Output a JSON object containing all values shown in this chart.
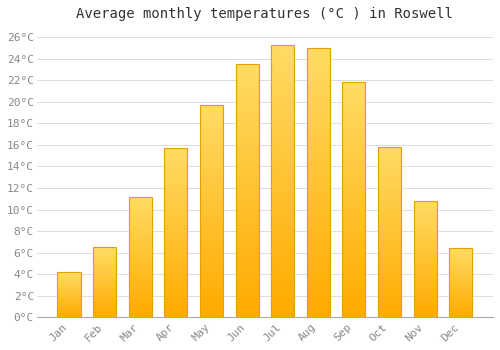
{
  "title": "Average monthly temperatures (°C ) in Roswell",
  "months": [
    "Jan",
    "Feb",
    "Mar",
    "Apr",
    "May",
    "Jun",
    "Jul",
    "Aug",
    "Sep",
    "Oct",
    "Nov",
    "Dec"
  ],
  "values": [
    4.2,
    6.5,
    11.2,
    15.7,
    19.7,
    23.5,
    25.3,
    25.0,
    21.8,
    15.8,
    10.8,
    6.4
  ],
  "bar_color_top": "#FFCC44",
  "bar_color_bottom": "#FFAA00",
  "bar_edge_color": "#E8A000",
  "background_color": "#FFFFFF",
  "plot_bg_color": "#FFFFFF",
  "grid_color": "#DDDDDD",
  "title_fontsize": 10,
  "tick_label_fontsize": 8,
  "axis_label_color": "#888888",
  "ylim": [
    0,
    27
  ],
  "yticks": [
    0,
    2,
    4,
    6,
    8,
    10,
    12,
    14,
    16,
    18,
    20,
    22,
    24,
    26
  ]
}
